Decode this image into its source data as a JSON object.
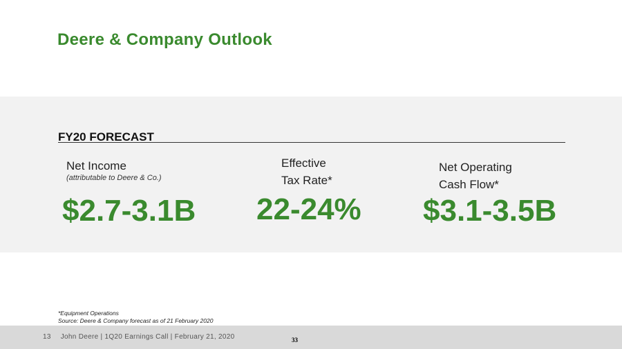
{
  "slide": {
    "title": "Deere & Company Outlook"
  },
  "forecast": {
    "heading": "FY20 FORECAST",
    "metrics": [
      {
        "label_line1": "Net Income",
        "label_line2": "",
        "sublabel": "(attributable to Deere & Co.)",
        "value": "$2.7-3.1B"
      },
      {
        "label_line1": "Effective",
        "label_line2": "Tax Rate*",
        "sublabel": "",
        "value": "22-24%"
      },
      {
        "label_line1": "Net Operating",
        "label_line2": "Cash Flow*",
        "sublabel": "",
        "value": "$3.1-3.5B"
      }
    ]
  },
  "notes": {
    "footnote": "*Equipment Operations",
    "source": "Source: Deere & Company forecast as of 21 February 2020"
  },
  "footer": {
    "slide_number": "13",
    "text": "John Deere | 1Q20 Earnings Call | February 21, 2020",
    "page_number": "33"
  },
  "colors": {
    "accent_green": "#3a8a2e",
    "panel_gray": "#f2f2f2",
    "footer_gray": "#d9d9d9"
  }
}
